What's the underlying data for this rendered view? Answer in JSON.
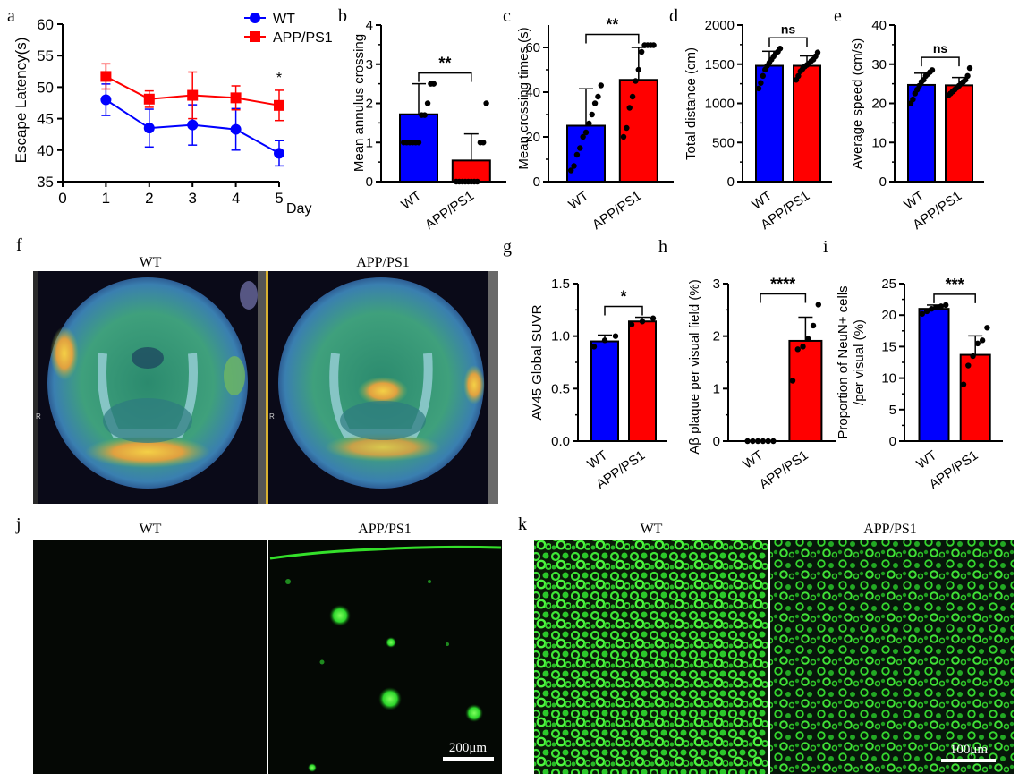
{
  "colors": {
    "wt": "#0000ff",
    "app": "#ff0000",
    "axis": "#000000",
    "scalebar": "#ffffff",
    "green": "#22e61c"
  },
  "panels": {
    "f": {
      "letter": "f",
      "left_title": "WT",
      "right_title": "APP/PS1",
      "side_mark": "R"
    },
    "j": {
      "letter": "j",
      "left_title": "WT",
      "right_title": "APP/PS1",
      "scale_label": "200μm"
    },
    "k": {
      "letter": "k",
      "left_title": "WT",
      "right_title": "APP/PS1",
      "scale_label": "100μm"
    }
  },
  "chart_data": [
    {
      "id": "a",
      "letter": "a",
      "type": "line",
      "ylabel": "Escape Latency(s)",
      "xlabel": "Day",
      "x": [
        1,
        2,
        3,
        4,
        5
      ],
      "xticks": [
        "0",
        "1",
        "2",
        "3",
        "4",
        "5"
      ],
      "ylim": [
        35,
        60
      ],
      "yticks": [
        "35",
        "40",
        "45",
        "50",
        "55",
        "60"
      ],
      "series": [
        {
          "name": "WT",
          "values": [
            48.0,
            43.5,
            44.0,
            43.3,
            39.5
          ],
          "err": [
            2.5,
            3.0,
            3.2,
            3.3,
            2.0
          ],
          "color": "#0000ff",
          "marker": "circle"
        },
        {
          "name": "APP/PS1",
          "values": [
            51.7,
            48.1,
            48.7,
            48.3,
            47.1
          ],
          "err": [
            2.0,
            1.3,
            3.7,
            1.9,
            2.4
          ],
          "color": "#ff0000",
          "marker": "square"
        }
      ],
      "annotations": [
        {
          "x": 5,
          "text": "*"
        }
      ],
      "legend": "top-right"
    },
    {
      "id": "b",
      "letter": "b",
      "type": "bar",
      "ylabel": "Mean annulus crossing",
      "categories": [
        "WT",
        "APP/PS1"
      ],
      "values": [
        1.72,
        0.54
      ],
      "err": [
        0.78,
        0.68
      ],
      "ylim": [
        0,
        4
      ],
      "yticks": [
        "0",
        "1",
        "2",
        "3",
        "4"
      ],
      "points": [
        [
          1,
          1,
          1,
          1,
          1,
          1,
          1.7,
          1.7,
          2,
          2.5,
          2.5
        ],
        [
          0,
          0,
          0,
          0,
          0,
          0,
          0,
          0,
          1,
          1,
          2
        ]
      ],
      "sig": "**"
    },
    {
      "id": "c",
      "letter": "c",
      "type": "bar",
      "ylabel": "Mean crossing times (s)",
      "categories": [
        "WT",
        "APP/PS1"
      ],
      "values": [
        25,
        45.5
      ],
      "err": [
        16.5,
        14.5
      ],
      "ylim": [
        0,
        70
      ],
      "yticks": [
        "0",
        "20",
        "40",
        "60"
      ],
      "points": [
        [
          5,
          7,
          12,
          15,
          20,
          22,
          26,
          30,
          35,
          38,
          43
        ],
        [
          20,
          24,
          33,
          38,
          45,
          50,
          58,
          61,
          61,
          61,
          61
        ]
      ],
      "sig": "**"
    },
    {
      "id": "d",
      "letter": "d",
      "type": "bar",
      "ylabel": "Total distance (cm)",
      "categories": [
        "WT",
        "APP/PS1"
      ],
      "values": [
        1480,
        1480
      ],
      "err": [
        185,
        125
      ],
      "ylim": [
        0,
        2000
      ],
      "yticks": [
        "0",
        "500",
        "1000",
        "1500",
        "2000"
      ],
      "points": [
        [
          1190,
          1260,
          1350,
          1430,
          1480,
          1520,
          1560,
          1600,
          1640,
          1660,
          1700
        ],
        [
          1300,
          1350,
          1410,
          1440,
          1470,
          1490,
          1510,
          1540,
          1560,
          1600,
          1650
        ]
      ],
      "sig": "ns"
    },
    {
      "id": "e",
      "letter": "e",
      "type": "bar",
      "ylabel": "Average speed (cm/s)",
      "categories": [
        "WT",
        "APP/PS1"
      ],
      "values": [
        24.7,
        24.6
      ],
      "err": [
        3.0,
        2.0
      ],
      "ylim": [
        0,
        40
      ],
      "yticks": [
        "0",
        "10",
        "20",
        "30",
        "40"
      ],
      "points": [
        [
          20,
          21,
          22.5,
          23.5,
          24.5,
          25.5,
          26,
          27,
          27.5,
          28,
          28.5
        ],
        [
          22,
          22.5,
          23,
          23.5,
          24,
          24.5,
          25,
          25.5,
          26,
          27,
          29
        ]
      ],
      "sig": "ns"
    },
    {
      "id": "g",
      "letter": "g",
      "type": "bar",
      "ylabel": "AV45 Global SUVR",
      "categories": [
        "WT",
        "APP/PS1"
      ],
      "values": [
        0.95,
        1.14
      ],
      "err": [
        0.06,
        0.04
      ],
      "ylim": [
        0,
        1.5
      ],
      "yticks": [
        "0.0",
        "0.5",
        "1.0",
        "1.5"
      ],
      "points": [
        [
          0.9,
          0.96,
          1.0
        ],
        [
          1.11,
          1.14,
          1.17
        ]
      ],
      "sig": "*"
    },
    {
      "id": "h",
      "letter": "h",
      "type": "bar",
      "ylabel": "Aβ plaque per visual field (%)",
      "categories": [
        "WT",
        "APP/PS1"
      ],
      "values": [
        0,
        1.91
      ],
      "err": [
        0,
        0.45
      ],
      "ylim": [
        0,
        3
      ],
      "yticks": [
        "0",
        "1",
        "2",
        "3"
      ],
      "points": [
        [
          0,
          0,
          0,
          0,
          0,
          0
        ],
        [
          1.15,
          1.75,
          1.8,
          1.95,
          2.2,
          2.6
        ]
      ],
      "sig": "****"
    },
    {
      "id": "i",
      "letter": "i",
      "type": "bar",
      "ylabel": "Proportion of NeuN+ cells",
      "ylabel2": "/per visual (%)",
      "categories": [
        "WT",
        "APP/PS1"
      ],
      "values": [
        21,
        13.7
      ],
      "err": [
        0.6,
        3.0
      ],
      "ylim": [
        0,
        25
      ],
      "yticks": [
        "0",
        "5",
        "10",
        "15",
        "20",
        "25"
      ],
      "points": [
        [
          20.2,
          20.6,
          21,
          21.2,
          21.4,
          21.6
        ],
        [
          9,
          12,
          13.5,
          15.5,
          16,
          18
        ]
      ],
      "sig": "***"
    }
  ]
}
